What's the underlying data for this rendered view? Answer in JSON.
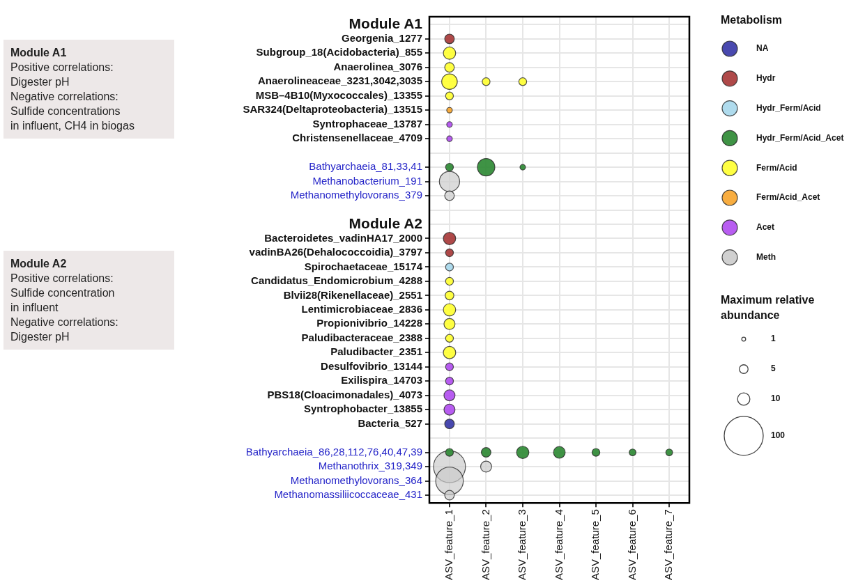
{
  "chart_data": {
    "type": "bubble",
    "orientation": "horizontal",
    "categories": [
      "Module A1",
      "Georgenia_1277",
      "Subgroup_18(Acidobacteria)_855",
      "Anaerolinea_3076",
      "Anaerolineaceae_3231,3042,3035",
      "MSB–4B10(Myxococcales)_13355",
      "SAR324(Deltaproteobacteria)_13515",
      "Syntrophaceae_13787",
      "Christensenellaceae_4709",
      null,
      "Bathyarchaeia_81,33,41",
      "Methanobacterium_191",
      "Methanomethylovorans_379",
      null,
      "Module A2",
      "Bacteroidetes_vadinHA17_2000",
      "vadinBA26(Dehalococcoidia)_3797",
      "Spirochaetaceae_15174",
      "Candidatus_Endomicrobium_4288",
      "Blvii28(Rikenellaceae)_2551",
      "Lentimicrobiaceae_2836",
      "Propionivibrio_14228",
      "Paludibacteraceae_2388",
      "Paludibacter_2351",
      "Desulfovibrio_13144",
      "Exilispira_14703",
      "PBS18(Cloacimonadales)_4073",
      "Syntrophobacter_13855",
      "Bacteria_527",
      null,
      "Bathyarchaeia_86,28,112,76,40,47,39",
      "Methanothrix_319,349",
      "Methanomethylovorans_364",
      "Methanomassiliicoccaceae_431"
    ],
    "xlim": [
      0.45,
      7.55
    ],
    "xticks": [
      {
        "value": 1,
        "label": "ASV_feature_1"
      },
      {
        "value": 2,
        "label": "ASV_feature_2"
      },
      {
        "value": 3,
        "label": "ASV_feature_3"
      },
      {
        "value": 4,
        "label": "ASV_feature_4"
      },
      {
        "value": 5,
        "label": "ASV_feature_5"
      },
      {
        "value": 6,
        "label": "ASV_feature_6"
      },
      {
        "value": 7,
        "label": "ASV_feature_7"
      }
    ],
    "legend_title": "Metabolism",
    "size_legend": [
      1,
      5,
      10,
      100
    ],
    "legend": "right",
    "grid": true,
    "series": [
      {
        "name": "NA",
        "color": "#3a3aa8",
        "x": [
          "Bacteria_527"
        ],
        "values": [
          1
        ],
        "sizes": [
          6
        ]
      },
      {
        "name": "Hydr",
        "color": "#a83a3a",
        "x": [
          "Georgenia_1277",
          "Bacteroidetes_vadinHA17_2000",
          "vadinBA26(Dehalococcoidia)_3797"
        ],
        "values": [
          1,
          1,
          1
        ],
        "sizes": [
          6,
          10,
          4
        ]
      },
      {
        "name": "Hydr_Ferm/Acid",
        "color": "#a8d8ec",
        "x": [
          "Spirochaetaceae_15174"
        ],
        "values": [
          1
        ],
        "sizes": [
          4
        ]
      },
      {
        "name": "Hydr_Ferm/Acid_Acet",
        "color": "#2f8a35",
        "x": [
          "Bathyarchaeia_81,33,41",
          "Bathyarchaeia_81,33,41",
          "Bathyarchaeia_81,33,41",
          "Bathyarchaeia_86,28,112,76,40,47,39",
          "Bathyarchaeia_86,28,112,76,40,47,39",
          "Bathyarchaeia_86,28,112,76,40,47,39",
          "Bathyarchaeia_86,28,112,76,40,47,39",
          "Bathyarchaeia_86,28,112,76,40,47,39",
          "Bathyarchaeia_86,28,112,76,40,47,39",
          "Bathyarchaeia_86,28,112,76,40,47,39"
        ],
        "values": [
          1,
          2,
          3,
          1,
          2,
          3,
          4,
          5,
          6,
          7
        ],
        "sizes": [
          4,
          20,
          2,
          4,
          6,
          10,
          9,
          4,
          3,
          3
        ]
      },
      {
        "name": "Ferm/Acid",
        "color": "#ffff33",
        "x": [
          "Subgroup_18(Acidobacteria)_855",
          "Anaerolinea_3076",
          "Anaerolineaceae_3231,3042,3035",
          "Anaerolineaceae_3231,3042,3035",
          "Anaerolineaceae_3231,3042,3035",
          "MSB–4B10(Myxococcales)_13355",
          "Candidatus_Endomicrobium_4288",
          "Blvii28(Rikenellaceae)_2551",
          "Lentimicrobiaceae_2836",
          "Propionivibrio_14228",
          "Paludibacteraceae_2388",
          "Paludibacter_2351"
        ],
        "values": [
          1,
          1,
          1,
          2,
          3,
          1,
          1,
          1,
          1,
          1,
          1,
          1
        ],
        "sizes": [
          10,
          6,
          16,
          4,
          4,
          4,
          4,
          5,
          10,
          8,
          4,
          10
        ]
      },
      {
        "name": "Ferm/Acid_Acet",
        "color": "#f7a630",
        "x": [
          "SAR324(Deltaproteobacteria)_13515"
        ],
        "values": [
          1
        ],
        "sizes": [
          2
        ]
      },
      {
        "name": "Acet",
        "color": "#b24ff0",
        "x": [
          "Syntrophaceae_13787",
          "Christensenellaceae_4709",
          "Desulfovibrio_13144",
          "Exilispira_14703",
          "PBS18(Cloacimonadales)_4073",
          "Syntrophobacter_13855"
        ],
        "values": [
          1,
          1,
          1,
          1,
          1,
          1
        ],
        "sizes": [
          2,
          2,
          4,
          4,
          8,
          8
        ]
      },
      {
        "name": "Meth",
        "color": "#cccccc",
        "x": [
          "Methanobacterium_191",
          "Methanomethylovorans_379",
          "Methanothrix_319,349",
          "Methanothrix_319,349",
          "Methanomethylovorans_364",
          "Methanomassiliicoccaceae_431"
        ],
        "values": [
          1,
          1,
          1,
          2,
          1,
          1
        ],
        "sizes": [
          27,
          6,
          67,
          8,
          50,
          6
        ]
      }
    ],
    "annotations": [
      "Module A1\nPositive correlations:\nDigester pH\nNegative correlations:\nSulfide concentrations\nin influent, CH4 in biogas",
      "Module A2\nPositive correlations:\nSulfide concentration\nin influent\nNegative correlations:\nDigester pH",
      "Maximum relative abundance"
    ]
  }
}
